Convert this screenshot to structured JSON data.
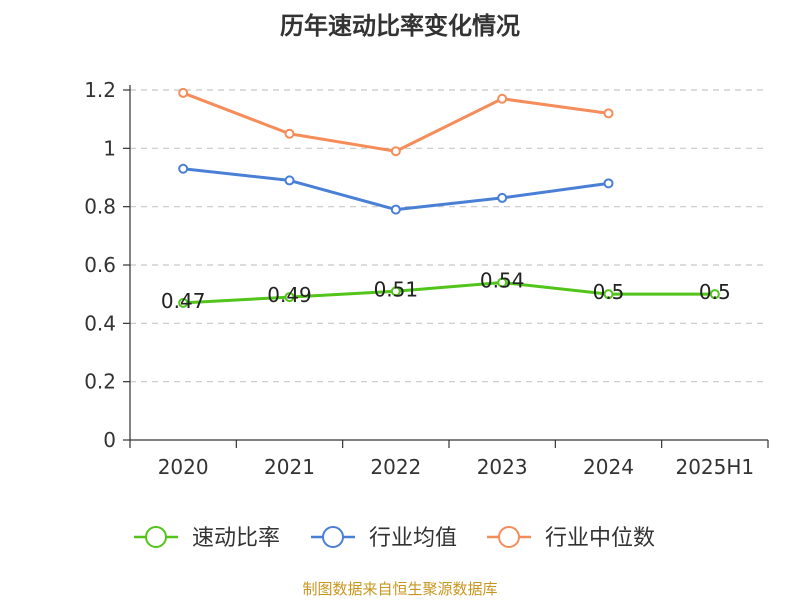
{
  "title": "历年速动比率变化情况",
  "source": "制图数据来自恒生聚源数据库",
  "chart_data": {
    "type": "line",
    "title": "历年速动比率变化情况",
    "categories": [
      "2020",
      "2021",
      "2022",
      "2023",
      "2024",
      "2025H1"
    ],
    "y_ticks": [
      "0",
      "0.2",
      "0.4",
      "0.6",
      "0.8",
      "1",
      "1.2"
    ],
    "ylim": [
      0,
      1.2
    ],
    "grid": true,
    "legend_position": "bottom",
    "series": [
      {
        "name": "速动比率",
        "color": "#52c41a",
        "values": [
          0.47,
          0.49,
          0.51,
          0.54,
          0.5,
          0.5
        ],
        "labels": [
          "0.47",
          "0.49",
          "0.51",
          "0.54",
          "0.5",
          "0.5"
        ]
      },
      {
        "name": "行业均值",
        "color": "#4a7fd6",
        "values": [
          0.93,
          0.89,
          0.79,
          0.83,
          0.88,
          null
        ]
      },
      {
        "name": "行业中位数",
        "color": "#f58d5a",
        "values": [
          1.19,
          1.05,
          0.99,
          1.17,
          1.12,
          null
        ]
      }
    ]
  }
}
